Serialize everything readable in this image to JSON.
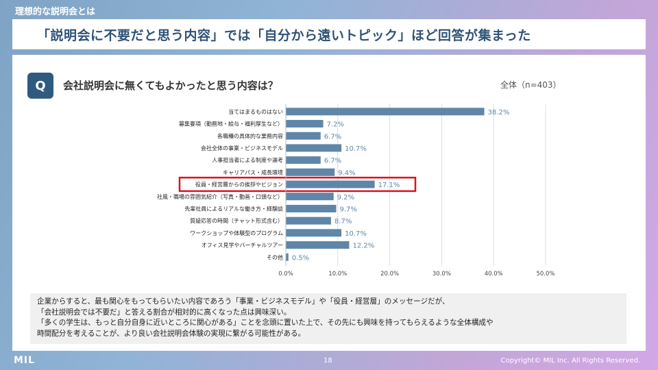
{
  "section_label": "理想的な説明会とは",
  "headline": "「説明会に不要だと思う内容」では「自分から遠いトピック」ほど回答が集まった",
  "question": {
    "badge": "Q",
    "text": "会社説明会に無くてもよかったと思う内容は？",
    "sample": "全体（n=403）"
  },
  "chart_data": {
    "type": "bar",
    "orientation": "horizontal",
    "categories": [
      "当てはまるものはない",
      "募集要項（勤務地・給与・福利厚生など）",
      "各職種の具体的な業務内容",
      "会社全体の事業・ビジネスモデル",
      "人事担当者による制度や選考",
      "キャリアパス・成長環境",
      "役員・経営層からの挨拶やビジョン",
      "社風・職場の雰囲気紹介（写真・動画・口頭など）",
      "先輩社員によるリアルな働き方・経験談",
      "質疑応答の時間（チャット形式含む）",
      "ワークショップや体験型のプログラム",
      "オフィス見学やバーチャルツアー",
      "その他"
    ],
    "values": [
      38.2,
      7.2,
      6.7,
      10.7,
      6.7,
      9.4,
      17.1,
      9.2,
      9.7,
      8.7,
      10.7,
      12.2,
      0.5
    ],
    "value_labels": [
      "38.2%",
      "7.2%",
      "6.7%",
      "10.7%",
      "6.7%",
      "9.4%",
      "17.1%",
      "9.2%",
      "9.7%",
      "8.7%",
      "10.7%",
      "12.2%",
      "0.5%"
    ],
    "xlim": [
      0,
      50
    ],
    "xticks": [
      "0.0%",
      "10.0%",
      "20.0%",
      "30.0%",
      "40.0%",
      "50.0%"
    ],
    "grid": true,
    "highlight_index": 6,
    "bar_color": "#5f86a8",
    "label_color": "#5f86a8",
    "highlight_color": "#e0101a"
  },
  "note": {
    "lines": [
      "企業からすると、最も関心をもってもらいたい内容であろう「事業・ビジネスモデル」や「役員・経営層」のメッセージだが、",
      "「会社説明会では不要だ」と答える割合が相対的に高くなった点は興味深い。",
      "「多くの学生は、もっと自分自身に近いところに関心がある」ことを念頭に置いた上で、その先にも興味を持ってもらえるような全体構成や",
      "時間配分を考えることが、より良い会社説明会体験の実現に繋がる可能性がある。"
    ]
  },
  "footer": {
    "logo": "MIL",
    "page_number": "18",
    "copyright": "Copyright© MIL Inc. All Rights Reserved."
  },
  "colors": {
    "headline": "#2f5276",
    "badge": "#2f5a80"
  }
}
